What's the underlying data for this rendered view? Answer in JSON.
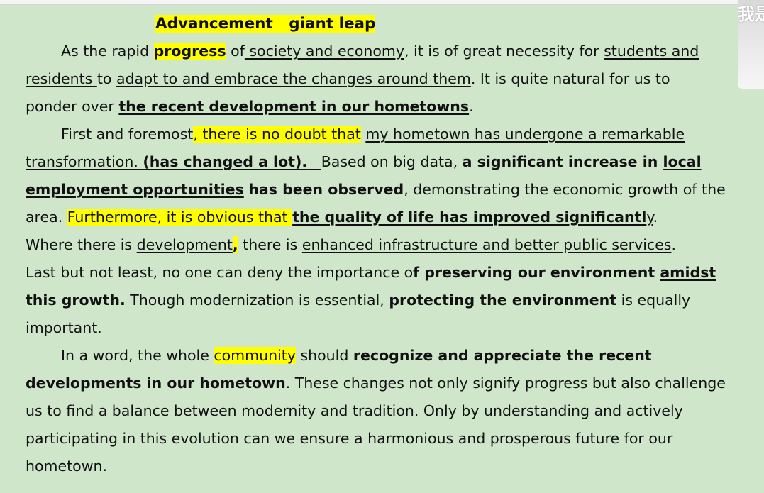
{
  "document": {
    "title": {
      "part1": "Advancement",
      "gap": "   ",
      "part2": "giant leap"
    },
    "overlay_text": "我是",
    "lines": [
      [
        "As the rapid ",
        "progress",
        " of",
        " society and economy",
        ", it is of great necessity for ",
        "students and"
      ],
      [
        "residents ",
        "to ",
        "adapt to and embrace the changes around them",
        ". It is quite natural for us to"
      ],
      [
        "ponder over ",
        "the recent development in our hometowns",
        "."
      ],
      [
        "First and foremost",
        ", there is no doubt that",
        " ",
        "my hometown has undergone a remarkable"
      ],
      [
        "transformation.",
        " ",
        "(has changed a lot).",
        "   ",
        "Based on big data, ",
        "a significant increase in ",
        "local"
      ],
      [
        "employment opportunities",
        " ",
        "has been observed",
        ", demonstrating the economic growth of the"
      ],
      [
        "area. ",
        "Furthermore, it is obvious that ",
        "the quality of life has improved significantl",
        "y",
        "."
      ],
      [
        "Where there is ",
        "development",
        ",",
        " there is ",
        "enhanced infrastructure and better public services",
        "."
      ],
      [
        "Last but not least, no one can deny the importance o",
        "f preserving our environment ",
        "amidst"
      ],
      [
        "this growth.",
        " Though modernization is essential, ",
        "protecting the environment",
        " is equally"
      ],
      [
        "important."
      ],
      [
        "In a word, the whole ",
        "community",
        " should ",
        "recognize and appreciate the recent"
      ],
      [
        "developments in our hometown",
        ". These changes not only signify progress but also challenge"
      ],
      [
        "us to find a balance between modernity and tradition. Only by understanding and actively"
      ],
      [
        "participating in this evolution can we ensure a harmonious and prosperous future for our"
      ],
      [
        "hometown."
      ]
    ]
  }
}
